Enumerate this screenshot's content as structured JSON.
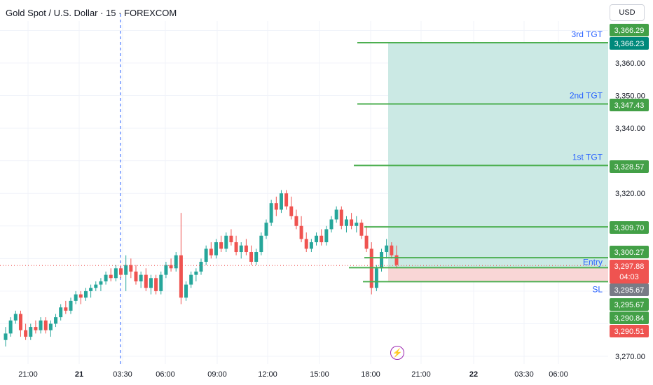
{
  "header": {
    "title": "Gold Spot / U.S. Dollar · 15 · FOREXCOM",
    "currency": "USD"
  },
  "colors": {
    "up": "#26a69a",
    "down": "#ef5350",
    "level_line": "#4caf50",
    "profit_zone": "#cbe9e4",
    "loss_zone": "#f9d6d6",
    "label_blue": "#2962ff",
    "price_tag_green": "#43a047",
    "price_tag_teal": "#00897b",
    "price_tag_red": "#ef5350",
    "price_tag_gray": "#787b86",
    "vertical_marker": "#2962ff",
    "event_icon": "#9c27b0"
  },
  "icons": {
    "event_marker": "lightning-bolt-icon"
  },
  "chart_data": {
    "type": "candlestick",
    "title": "Gold Spot / U.S. Dollar · 15 · FOREXCOM",
    "ylim": [
      3268,
      3368
    ],
    "y_ticks": [
      "3,360.00",
      "3,350.00",
      "3,340.00",
      "3,320.00",
      "3,270.00"
    ],
    "x_ticks": [
      "21:00",
      "21",
      "03:30",
      "06:00",
      "09:00",
      "12:00",
      "15:00",
      "18:00",
      "21:00",
      "22",
      "03:30",
      "06:00"
    ],
    "grid": true,
    "levels": [
      {
        "label": "3rd TGT",
        "price_label": "3,366.23",
        "value": 3366.23
      },
      {
        "label": "2nd TGT",
        "price_label": "3,347.43",
        "value": 3347.43
      },
      {
        "label": "1st TGT",
        "price_label": "3,328.57",
        "value": 3328.57
      },
      {
        "label": "",
        "price_label": "3,309.70",
        "value": 3309.7
      },
      {
        "label": "",
        "price_label": "3,300.27",
        "value": 3300.27
      },
      {
        "label": "Entry",
        "price_label": "",
        "value": 3297.2
      },
      {
        "label": "SL",
        "price_label": "",
        "value": 3292.9
      }
    ],
    "price_tags": [
      {
        "text": "3,366.29",
        "value": 3366.29,
        "style": "green"
      },
      {
        "text": "3,366.23",
        "value": 3366.23,
        "style": "teal"
      },
      {
        "text": "3,347.43",
        "value": 3347.43,
        "style": "green"
      },
      {
        "text": "3,328.57",
        "value": 3328.57,
        "style": "green"
      },
      {
        "text": "3,309.70",
        "value": 3309.7,
        "style": "green"
      },
      {
        "text": "3,300.27",
        "value": 3300.27,
        "style": "green"
      },
      {
        "text": "3,297.88",
        "value": 3297.88,
        "style": "red",
        "sub": "04:03"
      },
      {
        "text": "3,295.67",
        "value": 3295.67,
        "style": "gray"
      },
      {
        "text": "3,295.67",
        "value": 3295.67,
        "style": "green"
      },
      {
        "text": "3,290.84",
        "value": 3290.84,
        "style": "green"
      },
      {
        "text": "3,290.51",
        "value": 3290.51,
        "style": "red"
      }
    ],
    "current_price": 3297.88,
    "candles": [
      [
        3275,
        3279,
        3273,
        3277
      ],
      [
        3277,
        3282,
        3276,
        3281
      ],
      [
        3281,
        3284,
        3280,
        3283
      ],
      [
        3283,
        3284,
        3276,
        3278
      ],
      [
        3278,
        3280,
        3275,
        3276
      ],
      [
        3276,
        3280,
        3275,
        3279
      ],
      [
        3279,
        3281,
        3277,
        3278
      ],
      [
        3278,
        3282,
        3277,
        3281
      ],
      [
        3281,
        3282,
        3277,
        3278
      ],
      [
        3278,
        3281,
        3276,
        3280
      ],
      [
        3280,
        3283,
        3279,
        3282
      ],
      [
        3282,
        3286,
        3281,
        3285
      ],
      [
        3285,
        3287,
        3283,
        3284
      ],
      [
        3284,
        3288,
        3283,
        3287
      ],
      [
        3287,
        3290,
        3286,
        3289
      ],
      [
        3289,
        3290,
        3286,
        3288
      ],
      [
        3288,
        3291,
        3287,
        3290
      ],
      [
        3290,
        3292,
        3288,
        3291
      ],
      [
        3291,
        3293,
        3290,
        3292
      ],
      [
        3292,
        3294,
        3290,
        3293
      ],
      [
        3293,
        3296,
        3292,
        3295
      ],
      [
        3295,
        3297,
        3293,
        3294
      ],
      [
        3294,
        3298,
        3293,
        3297
      ],
      [
        3297,
        3298,
        3294,
        3295
      ],
      [
        3295,
        3301,
        3290,
        3298
      ],
      [
        3298,
        3300,
        3294,
        3296
      ],
      [
        3296,
        3298,
        3292,
        3293
      ],
      [
        3293,
        3296,
        3291,
        3295
      ],
      [
        3295,
        3297,
        3290,
        3291
      ],
      [
        3291,
        3295,
        3289,
        3294
      ],
      [
        3294,
        3295,
        3289,
        3290
      ],
      [
        3290,
        3296,
        3289,
        3295
      ],
      [
        3295,
        3299,
        3294,
        3298
      ],
      [
        3298,
        3300,
        3296,
        3297
      ],
      [
        3297,
        3302,
        3296,
        3301
      ],
      [
        3301,
        3314,
        3286,
        3288
      ],
      [
        3288,
        3293,
        3287,
        3292
      ],
      [
        3292,
        3296,
        3291,
        3295
      ],
      [
        3295,
        3297,
        3293,
        3296
      ],
      [
        3296,
        3300,
        3295,
        3299
      ],
      [
        3299,
        3304,
        3298,
        3303
      ],
      [
        3303,
        3305,
        3300,
        3301
      ],
      [
        3301,
        3306,
        3300,
        3305
      ],
      [
        3305,
        3307,
        3302,
        3303
      ],
      [
        3303,
        3308,
        3302,
        3307
      ],
      [
        3307,
        3309,
        3304,
        3305
      ],
      [
        3305,
        3307,
        3301,
        3302
      ],
      [
        3302,
        3305,
        3300,
        3304
      ],
      [
        3304,
        3306,
        3301,
        3302
      ],
      [
        3302,
        3304,
        3298,
        3299
      ],
      [
        3299,
        3303,
        3298,
        3302
      ],
      [
        3302,
        3308,
        3301,
        3307
      ],
      [
        3307,
        3312,
        3306,
        3311
      ],
      [
        3311,
        3318,
        3310,
        3317
      ],
      [
        3317,
        3319,
        3313,
        3315
      ],
      [
        3315,
        3321,
        3314,
        3320
      ],
      [
        3320,
        3321,
        3315,
        3316
      ],
      [
        3316,
        3319,
        3312,
        3313
      ],
      [
        3313,
        3315,
        3309,
        3310
      ],
      [
        3310,
        3313,
        3305,
        3306
      ],
      [
        3306,
        3308,
        3302,
        3303
      ],
      [
        3303,
        3306,
        3302,
        3305
      ],
      [
        3305,
        3308,
        3304,
        3307
      ],
      [
        3307,
        3309,
        3304,
        3305
      ],
      [
        3305,
        3310,
        3304,
        3309
      ],
      [
        3309,
        3313,
        3308,
        3312
      ],
      [
        3312,
        3316,
        3311,
        3315
      ],
      [
        3315,
        3316,
        3309,
        3310
      ],
      [
        3310,
        3313,
        3308,
        3312
      ],
      [
        3312,
        3314,
        3309,
        3310
      ],
      [
        3310,
        3313,
        3308,
        3311
      ],
      [
        3311,
        3312,
        3306,
        3307
      ],
      [
        3307,
        3310,
        3302,
        3303
      ],
      [
        3303,
        3305,
        3289,
        3291
      ],
      [
        3291,
        3298,
        3290,
        3297
      ],
      [
        3297,
        3303,
        3296,
        3302
      ],
      [
        3302,
        3306,
        3300,
        3304
      ],
      [
        3304,
        3305,
        3300,
        3301
      ],
      [
        3301,
        3304,
        3297,
        3298
      ]
    ]
  }
}
